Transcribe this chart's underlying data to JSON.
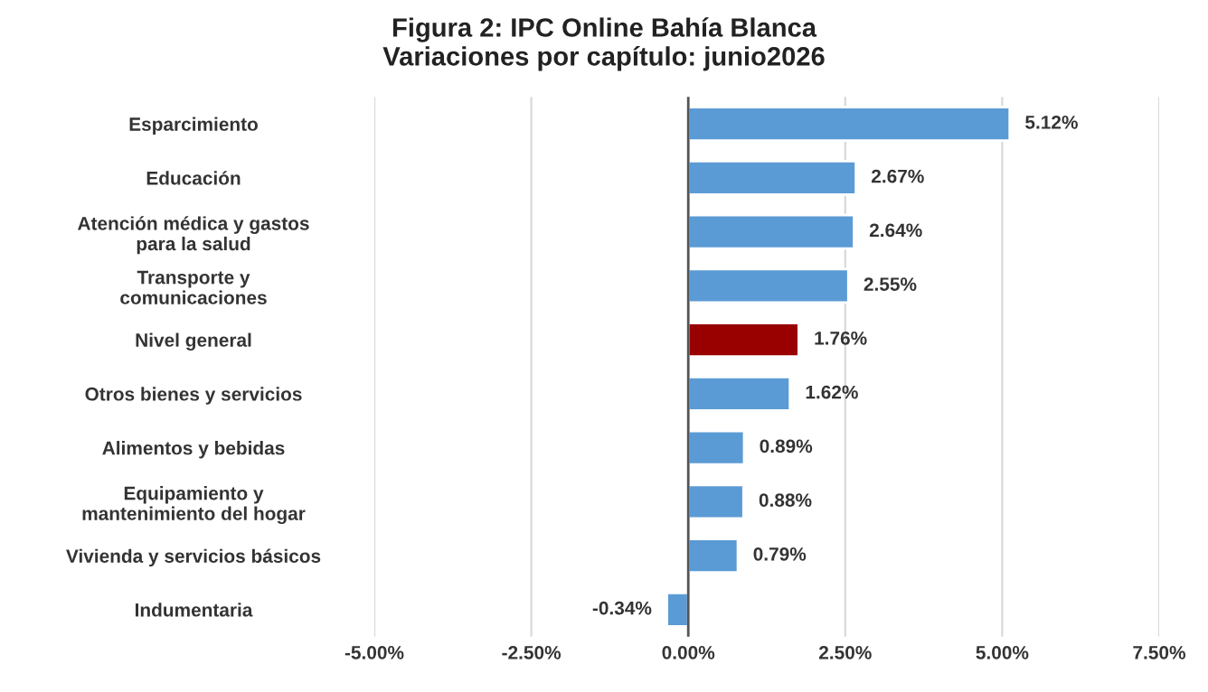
{
  "chart_data": {
    "type": "bar",
    "orientation": "horizontal",
    "title": "Figura 2: IPC Online Bahía Blanca\nVariaciones por capítulo: junio2026",
    "categories": [
      "Esparcimiento",
      "Educación",
      "Atención médica y gastos\npara la salud",
      "Transporte y\ncomunicaciones",
      "Nivel general",
      "Otros bienes y servicios",
      "Alimentos y bebidas",
      "Equipamiento y\nmantenimiento del hogar",
      "Vivienda y servicios básicos",
      "Indumentaria"
    ],
    "values": [
      5.12,
      2.67,
      2.64,
      2.55,
      1.76,
      1.62,
      0.89,
      0.88,
      0.79,
      -0.34
    ],
    "value_labels": [
      "5.12%",
      "2.67%",
      "2.64%",
      "2.55%",
      "1.76%",
      "1.62%",
      "0.89%",
      "0.88%",
      "0.79%",
      "-0.34%"
    ],
    "colors": [
      "#5b9bd5",
      "#5b9bd5",
      "#5b9bd5",
      "#5b9bd5",
      "#990000",
      "#5b9bd5",
      "#5b9bd5",
      "#5b9bd5",
      "#5b9bd5",
      "#5b9bd5"
    ],
    "xlim": [
      -5,
      7.5
    ],
    "xticks": [
      {
        "value": -5,
        "label": "-5.00%"
      },
      {
        "value": -2.5,
        "label": "-2.50%"
      },
      {
        "value": 0,
        "label": "0.00%"
      },
      {
        "value": 2.5,
        "label": "2.50%"
      },
      {
        "value": 5,
        "label": "5.00%"
      },
      {
        "value": 7.5,
        "label": "7.50%"
      }
    ],
    "grid": "x",
    "ref_lines": [
      {
        "axis": "x",
        "value": 0,
        "color": "#555555"
      }
    ]
  }
}
